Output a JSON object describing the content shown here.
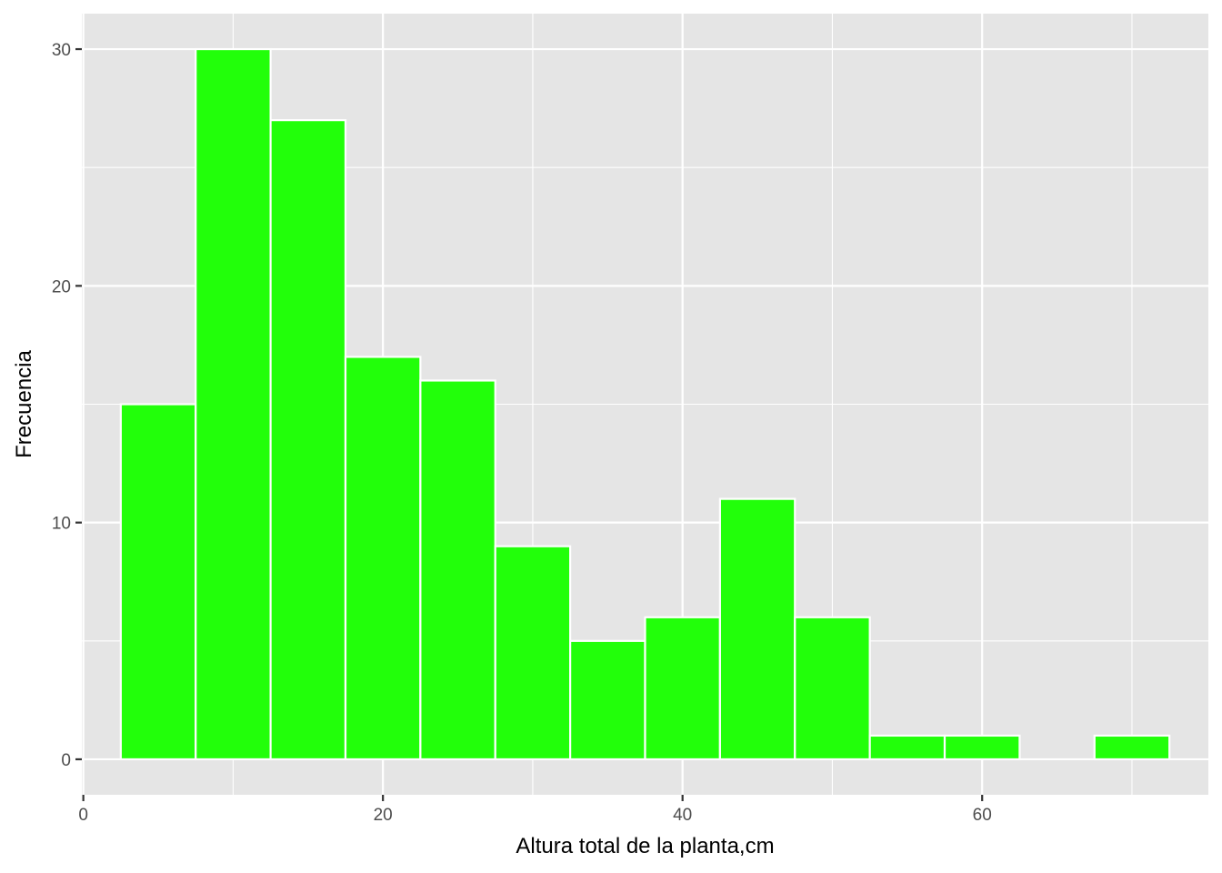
{
  "chart_data": {
    "type": "bar",
    "subtype": "histogram",
    "bin_width": 5,
    "bins": [
      {
        "from": 2.5,
        "to": 7.5,
        "count": 15
      },
      {
        "from": 7.5,
        "to": 12.5,
        "count": 30
      },
      {
        "from": 12.5,
        "to": 17.5,
        "count": 27
      },
      {
        "from": 17.5,
        "to": 22.5,
        "count": 17
      },
      {
        "from": 22.5,
        "to": 27.5,
        "count": 16
      },
      {
        "from": 27.5,
        "to": 32.5,
        "count": 9
      },
      {
        "from": 32.5,
        "to": 37.5,
        "count": 5
      },
      {
        "from": 37.5,
        "to": 42.5,
        "count": 6
      },
      {
        "from": 42.5,
        "to": 47.5,
        "count": 11
      },
      {
        "from": 47.5,
        "to": 52.5,
        "count": 6
      },
      {
        "from": 52.5,
        "to": 57.5,
        "count": 1
      },
      {
        "from": 57.5,
        "to": 62.5,
        "count": 1
      },
      {
        "from": 62.5,
        "to": 67.5,
        "count": 0
      },
      {
        "from": 67.5,
        "to": 72.5,
        "count": 1
      }
    ],
    "xlabel": "Altura total de la planta,cm",
    "ylabel": "Frecuencia",
    "x_ticks": [
      0,
      20,
      40,
      60
    ],
    "x_tick_labels": [
      "0",
      "20",
      "40",
      "60"
    ],
    "y_ticks": [
      0,
      10,
      20,
      30
    ],
    "y_tick_labels": [
      "0",
      "10",
      "20",
      "30"
    ],
    "xlim": [
      -0.1,
      75.1
    ],
    "ylim": [
      -1.5,
      31.5
    ],
    "grid": true,
    "colors": {
      "bar_fill": "#22ff0a",
      "bar_outline": "#ffffff",
      "panel_background": "#e5e5e5",
      "grid": "#ffffff",
      "tick_text": "#4d4d4d",
      "tick_mark": "#333333",
      "axis_title": "#000000"
    }
  }
}
